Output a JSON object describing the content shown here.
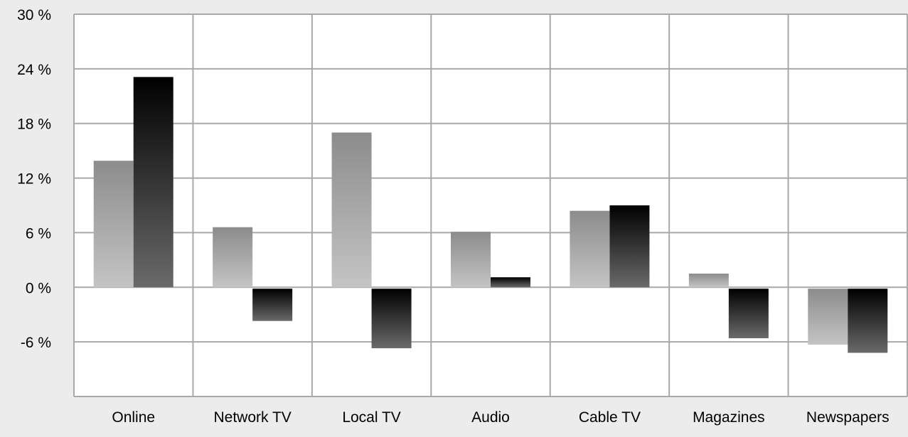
{
  "chart_data": {
    "type": "bar",
    "categories": [
      "Online",
      "Network TV",
      "Local TV",
      "Audio",
      "Cable TV",
      "Magazines",
      "Newspapers"
    ],
    "series": [
      {
        "values": [
          13.9,
          6.6,
          17.0,
          6.1,
          8.4,
          1.5,
          -6.3
        ]
      },
      {
        "values": [
          23.1,
          -3.7,
          -6.7,
          1.1,
          9.0,
          -5.6,
          -7.2
        ]
      }
    ],
    "yticks": [
      "30 %",
      "24 %",
      "18 %",
      "12 %",
      "6 %",
      "0 %",
      "-6 %"
    ],
    "ytick_values": [
      30,
      24,
      18,
      12,
      6,
      0,
      -6
    ],
    "ylim": [
      -12,
      30
    ],
    "grid": true,
    "colors": {
      "background": "#ececec",
      "plot_background": "#ffffff",
      "grid": "#a8a8a8",
      "series_1_top": "#8c8c8c",
      "series_1_bottom": "#c4c4c4",
      "series_2_dark": "#000000",
      "series_2_light": "#6a6a6a"
    }
  }
}
